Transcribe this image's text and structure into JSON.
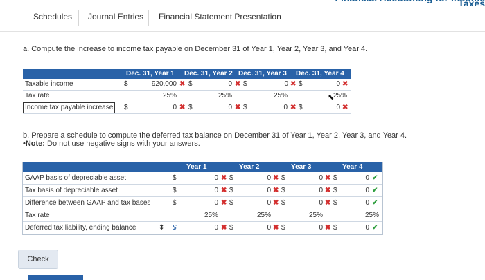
{
  "header": {
    "banner": "Financial Accounting for Income Taxes"
  },
  "tabs": [
    "Schedules",
    "Journal Entries",
    "Financial Statement Presentation"
  ],
  "part_a": {
    "question": "a. Compute the increase to income tax payable on December 31 of Year 1, Year 2, Year 3, and Year 4.",
    "columns": [
      "Dec. 31, Year 1",
      "Dec. 31, Year 2",
      "Dec. 31, Year 3",
      "Dec. 31, Year 4"
    ],
    "rows": [
      {
        "label": "Taxable income",
        "values": [
          "920,000",
          "0",
          "0",
          "0"
        ],
        "status": [
          "x",
          "x",
          "x",
          "x"
        ]
      },
      {
        "label": "Tax rate",
        "values": [
          "25%",
          "25%",
          "25%",
          "25%"
        ]
      },
      {
        "label": "Income tax payable increase",
        "values": [
          "0",
          "0",
          "0",
          "0"
        ],
        "status": [
          "x",
          "x",
          "x",
          "x"
        ]
      }
    ],
    "currency": "$"
  },
  "part_b": {
    "question": "b. Prepare a schedule to compute the deferred tax balance on December 31 of Year 1, Year 2, Year 3, and Year 4.",
    "note_label": "Note:",
    "note_text": "Do not use negative signs with your answers.",
    "note_bullet": "•",
    "columns": [
      "Year 1",
      "Year 2",
      "Year 3",
      "Year 4"
    ],
    "rows": [
      {
        "label": "GAAP basis of depreciable asset",
        "values": [
          "0",
          "0",
          "0",
          "0"
        ],
        "status": [
          "x",
          "x",
          "x",
          "ok"
        ]
      },
      {
        "label": "Tax basis of depreciable asset",
        "values": [
          "0",
          "0",
          "0",
          "0"
        ],
        "status": [
          "x",
          "x",
          "x",
          "ok"
        ]
      },
      {
        "label": "Difference between GAAP and tax bases",
        "values": [
          "0",
          "0",
          "0",
          "0"
        ],
        "status": [
          "x",
          "x",
          "x",
          "ok"
        ]
      },
      {
        "label": "Tax rate",
        "values": [
          "25%",
          "25%",
          "25%",
          "25%"
        ]
      },
      {
        "label": "Deferred tax liability, ending balance",
        "values": [
          "0",
          "0",
          "0",
          "0"
        ],
        "status": [
          "x",
          "x",
          "x",
          "ok"
        ]
      }
    ],
    "currency": "$",
    "selector_symbol": "⬍",
    "dollar_sel": "$"
  },
  "buttons": {
    "check": "Check"
  },
  "marks": {
    "x": "✖",
    "ok": "✔"
  }
}
